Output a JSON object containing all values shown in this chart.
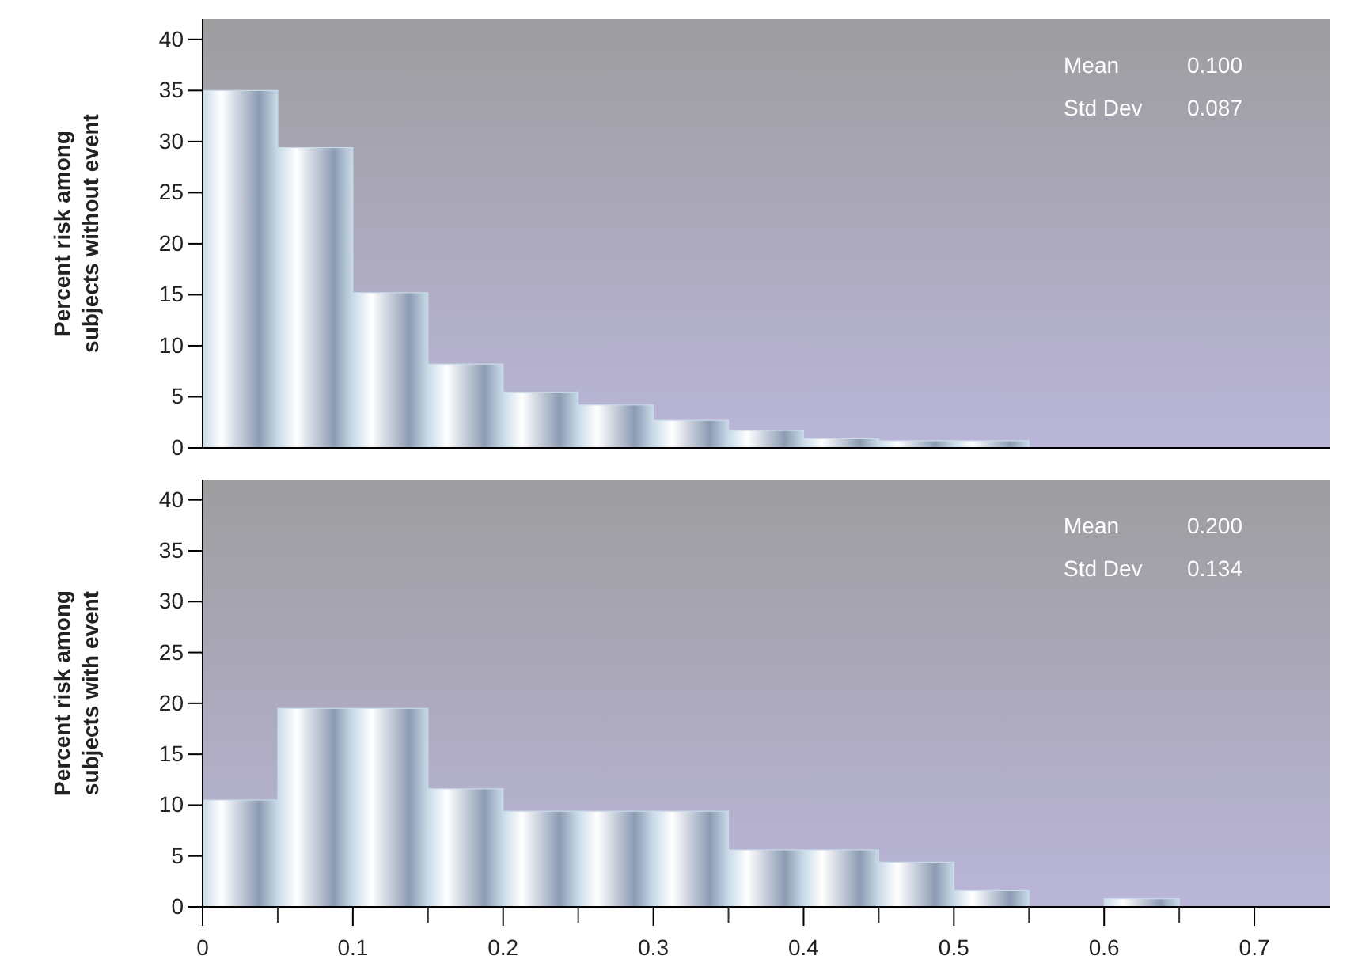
{
  "chart_data": [
    {
      "type": "histogram",
      "ylabel": "Percent risk among subjects without event",
      "bins": [
        0,
        0.05,
        0.1,
        0.15,
        0.2,
        0.25,
        0.3,
        0.35,
        0.4,
        0.45,
        0.5,
        0.55
      ],
      "values": [
        35,
        29.4,
        15.2,
        8.2,
        5.4,
        4.2,
        2.7,
        1.7,
        0.9,
        0.7,
        0.7
      ],
      "color": "#c9dbe8",
      "xlim": [
        0,
        0.75
      ],
      "xticks": [
        0,
        0.1,
        0.2,
        0.3,
        0.4,
        0.5,
        0.6,
        0.7
      ],
      "ylim": [
        0,
        42
      ],
      "yticks": [
        0,
        5,
        10,
        15,
        20,
        25,
        30,
        35,
        40
      ],
      "tick_labels": "y",
      "annotations": [
        "Mean",
        "0.100",
        "Std Dev",
        "0.087"
      ]
    },
    {
      "type": "histogram",
      "ylabel": "Percent risk among subjects with event",
      "bins": [
        0,
        0.05,
        0.1,
        0.15,
        0.2,
        0.25,
        0.3,
        0.35,
        0.4,
        0.45,
        0.5,
        0.55,
        0.6,
        0.65
      ],
      "values": [
        10.5,
        19.5,
        19.5,
        11.6,
        9.4,
        9.4,
        9.4,
        5.6,
        5.6,
        4.4,
        1.6,
        0,
        0.8
      ],
      "color": "#c9dbe8",
      "xlim": [
        0,
        0.75
      ],
      "xticks": [
        0,
        0.1,
        0.2,
        0.3,
        0.4,
        0.5,
        0.6,
        0.7
      ],
      "ylim": [
        0,
        42
      ],
      "yticks": [
        0,
        5,
        10,
        15,
        20,
        25,
        30,
        35,
        40
      ],
      "annotations": [
        "Mean",
        "0.200",
        "Std Dev",
        "0.134"
      ]
    }
  ]
}
